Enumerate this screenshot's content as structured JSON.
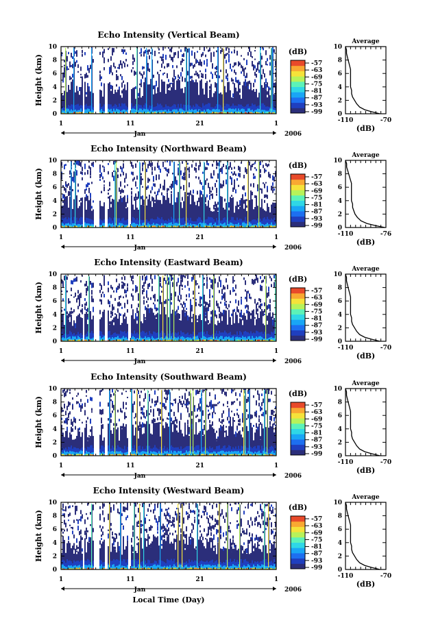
{
  "figure": {
    "xlabel": "Local Time (Day)",
    "year_label": "2006",
    "month_label": "Jan"
  },
  "colorbar": {
    "unit": "(dB)",
    "ticks": [
      "-57",
      "-63",
      "-69",
      "-75",
      "-81",
      "-87",
      "-93",
      "-99"
    ],
    "colors": [
      "#2b2e7a",
      "#1f3fbf",
      "#1d6ff0",
      "#19a6f5",
      "#2fd7e6",
      "#5cf2b8",
      "#b7f25a",
      "#f5e23a",
      "#f9a832",
      "#e84a2a"
    ]
  },
  "chart_data": [
    {
      "type": "heatmap",
      "title": "Echo Intensity (Vertical Beam)",
      "ylabel": "Height (km)",
      "ylim": [
        0,
        10
      ],
      "yticks": [
        "0",
        "2",
        "4",
        "6",
        "8",
        "10"
      ],
      "xticks": [
        "1",
        "11",
        "21",
        "1"
      ],
      "data_gaps_days": [
        [
          4.0,
          4.3
        ],
        [
          5.7,
          6.4
        ],
        [
          7.3,
          7.6
        ],
        [
          10.6,
          10.9
        ]
      ],
      "profile": {
        "title": "Average",
        "xlabel": "(dB)",
        "xlim": [
          -110,
          -70
        ],
        "xticks": [
          "-110",
          "-70"
        ],
        "ylim": [
          0,
          10
        ],
        "yticks": [
          "0",
          "2",
          "4",
          "6",
          "8",
          "10"
        ],
        "x": [
          -76,
          -84,
          -91,
          -96,
          -99,
          -101,
          -103,
          -104,
          -104,
          -105,
          -105,
          -105,
          -105,
          -106,
          -107,
          -108,
          -109,
          -109,
          -110
        ],
        "y": [
          0,
          0.3,
          0.6,
          1.0,
          1.5,
          2.0,
          2.5,
          3.0,
          3.5,
          4.0,
          5.0,
          6.0,
          6.6,
          7.2,
          7.8,
          8.4,
          9.0,
          9.5,
          10.0
        ]
      }
    },
    {
      "type": "heatmap",
      "title": "Echo Intensity (Northward Beam)",
      "ylabel": "Height (km)",
      "ylim": [
        0,
        10
      ],
      "yticks": [
        "0",
        "2",
        "4",
        "6",
        "8",
        "10"
      ],
      "xticks": [
        "1",
        "11",
        "21",
        "1"
      ],
      "data_gaps_days": [
        [
          4.0,
          4.3
        ],
        [
          5.7,
          6.4
        ],
        [
          7.3,
          7.6
        ],
        [
          10.6,
          10.9
        ]
      ],
      "profile": {
        "title": "Average",
        "xlabel": "(dB)",
        "xlim": [
          -110,
          -76
        ],
        "xticks": [
          "-110",
          "-76"
        ],
        "ylim": [
          0,
          10
        ],
        "yticks": [
          "0",
          "2",
          "4",
          "6",
          "8",
          "10"
        ],
        "x": [
          -77,
          -85,
          -92,
          -97,
          -100,
          -102,
          -103,
          -104,
          -104,
          -105,
          -105,
          -105,
          -105,
          -106,
          -107,
          -108,
          -109,
          -109,
          -110
        ],
        "y": [
          0,
          0.3,
          0.6,
          1.0,
          1.5,
          2.0,
          2.5,
          3.0,
          3.5,
          4.0,
          5.0,
          6.0,
          6.6,
          7.2,
          7.8,
          8.4,
          9.0,
          9.5,
          10.0
        ]
      }
    },
    {
      "type": "heatmap",
      "title": "Echo Intensity (Eastward Beam)",
      "ylabel": "Height (km)",
      "ylim": [
        0,
        10
      ],
      "yticks": [
        "0",
        "2",
        "4",
        "6",
        "8",
        "10"
      ],
      "xticks": [
        "1",
        "11",
        "21",
        "1"
      ],
      "data_gaps_days": [
        [
          4.0,
          4.3
        ],
        [
          5.7,
          6.4
        ],
        [
          7.3,
          7.6
        ],
        [
          10.6,
          10.9
        ]
      ],
      "profile": {
        "title": "Average",
        "xlabel": "(dB)",
        "xlim": [
          -110,
          -70
        ],
        "xticks": [
          "-110",
          "-70"
        ],
        "ylim": [
          0,
          10
        ],
        "yticks": [
          "0",
          "2",
          "4",
          "6",
          "8",
          "10"
        ],
        "x": [
          -76,
          -84,
          -91,
          -96,
          -99,
          -101,
          -103,
          -104,
          -104,
          -105,
          -105,
          -105,
          -105,
          -106,
          -107,
          -108,
          -109,
          -109,
          -110
        ],
        "y": [
          0,
          0.3,
          0.6,
          1.0,
          1.5,
          2.0,
          2.5,
          3.0,
          3.5,
          4.0,
          5.0,
          6.0,
          6.6,
          7.2,
          7.8,
          8.4,
          9.0,
          9.5,
          10.0
        ]
      }
    },
    {
      "type": "heatmap",
      "title": "Echo Intensity (Southward Beam)",
      "ylabel": "Height (km)",
      "ylim": [
        0,
        10
      ],
      "yticks": [
        "0",
        "2",
        "4",
        "6",
        "8",
        "10"
      ],
      "xticks": [
        "1",
        "11",
        "21",
        "1"
      ],
      "data_gaps_days": [
        [
          4.0,
          4.3
        ],
        [
          5.7,
          6.4
        ],
        [
          7.3,
          7.6
        ],
        [
          10.6,
          10.9
        ]
      ],
      "profile": {
        "title": "Average",
        "xlabel": "(dB)",
        "xlim": [
          -110,
          -70
        ],
        "xticks": [
          "-110",
          "-70"
        ],
        "ylim": [
          0,
          10
        ],
        "yticks": [
          "0",
          "2",
          "4",
          "6",
          "8",
          "10"
        ],
        "x": [
          -76,
          -84,
          -91,
          -96,
          -99,
          -101,
          -103,
          -104,
          -104,
          -105,
          -105,
          -105,
          -105,
          -106,
          -107,
          -108,
          -109,
          -109,
          -110
        ],
        "y": [
          0,
          0.3,
          0.6,
          1.0,
          1.5,
          2.0,
          2.5,
          3.0,
          3.5,
          4.0,
          5.0,
          6.0,
          6.6,
          7.2,
          7.8,
          8.4,
          9.0,
          9.5,
          10.0
        ]
      }
    },
    {
      "type": "heatmap",
      "title": "Echo Intensity (Westward Beam)",
      "ylabel": "Height (km)",
      "ylim": [
        0,
        10
      ],
      "yticks": [
        "0",
        "2",
        "4",
        "6",
        "8",
        "10"
      ],
      "xticks": [
        "1",
        "11",
        "21",
        "1"
      ],
      "data_gaps_days": [
        [
          4.0,
          4.3
        ],
        [
          5.7,
          6.4
        ],
        [
          7.3,
          7.6
        ],
        [
          10.6,
          10.9
        ]
      ],
      "profile": {
        "title": "Average",
        "xlabel": "(dB)",
        "xlim": [
          -110,
          -70
        ],
        "xticks": [
          "-110",
          "-70"
        ],
        "ylim": [
          0,
          10
        ],
        "yticks": [
          "0",
          "2",
          "4",
          "6",
          "8",
          "10"
        ],
        "x": [
          -76,
          -84,
          -91,
          -96,
          -99,
          -101,
          -103,
          -104,
          -104,
          -105,
          -105,
          -105,
          -105,
          -106,
          -107,
          -108,
          -109,
          -109,
          -110
        ],
        "y": [
          0,
          0.3,
          0.6,
          1.0,
          1.5,
          2.0,
          2.5,
          3.0,
          3.5,
          4.0,
          5.0,
          6.0,
          6.6,
          7.2,
          7.8,
          8.4,
          9.0,
          9.5,
          10.0
        ]
      }
    }
  ]
}
